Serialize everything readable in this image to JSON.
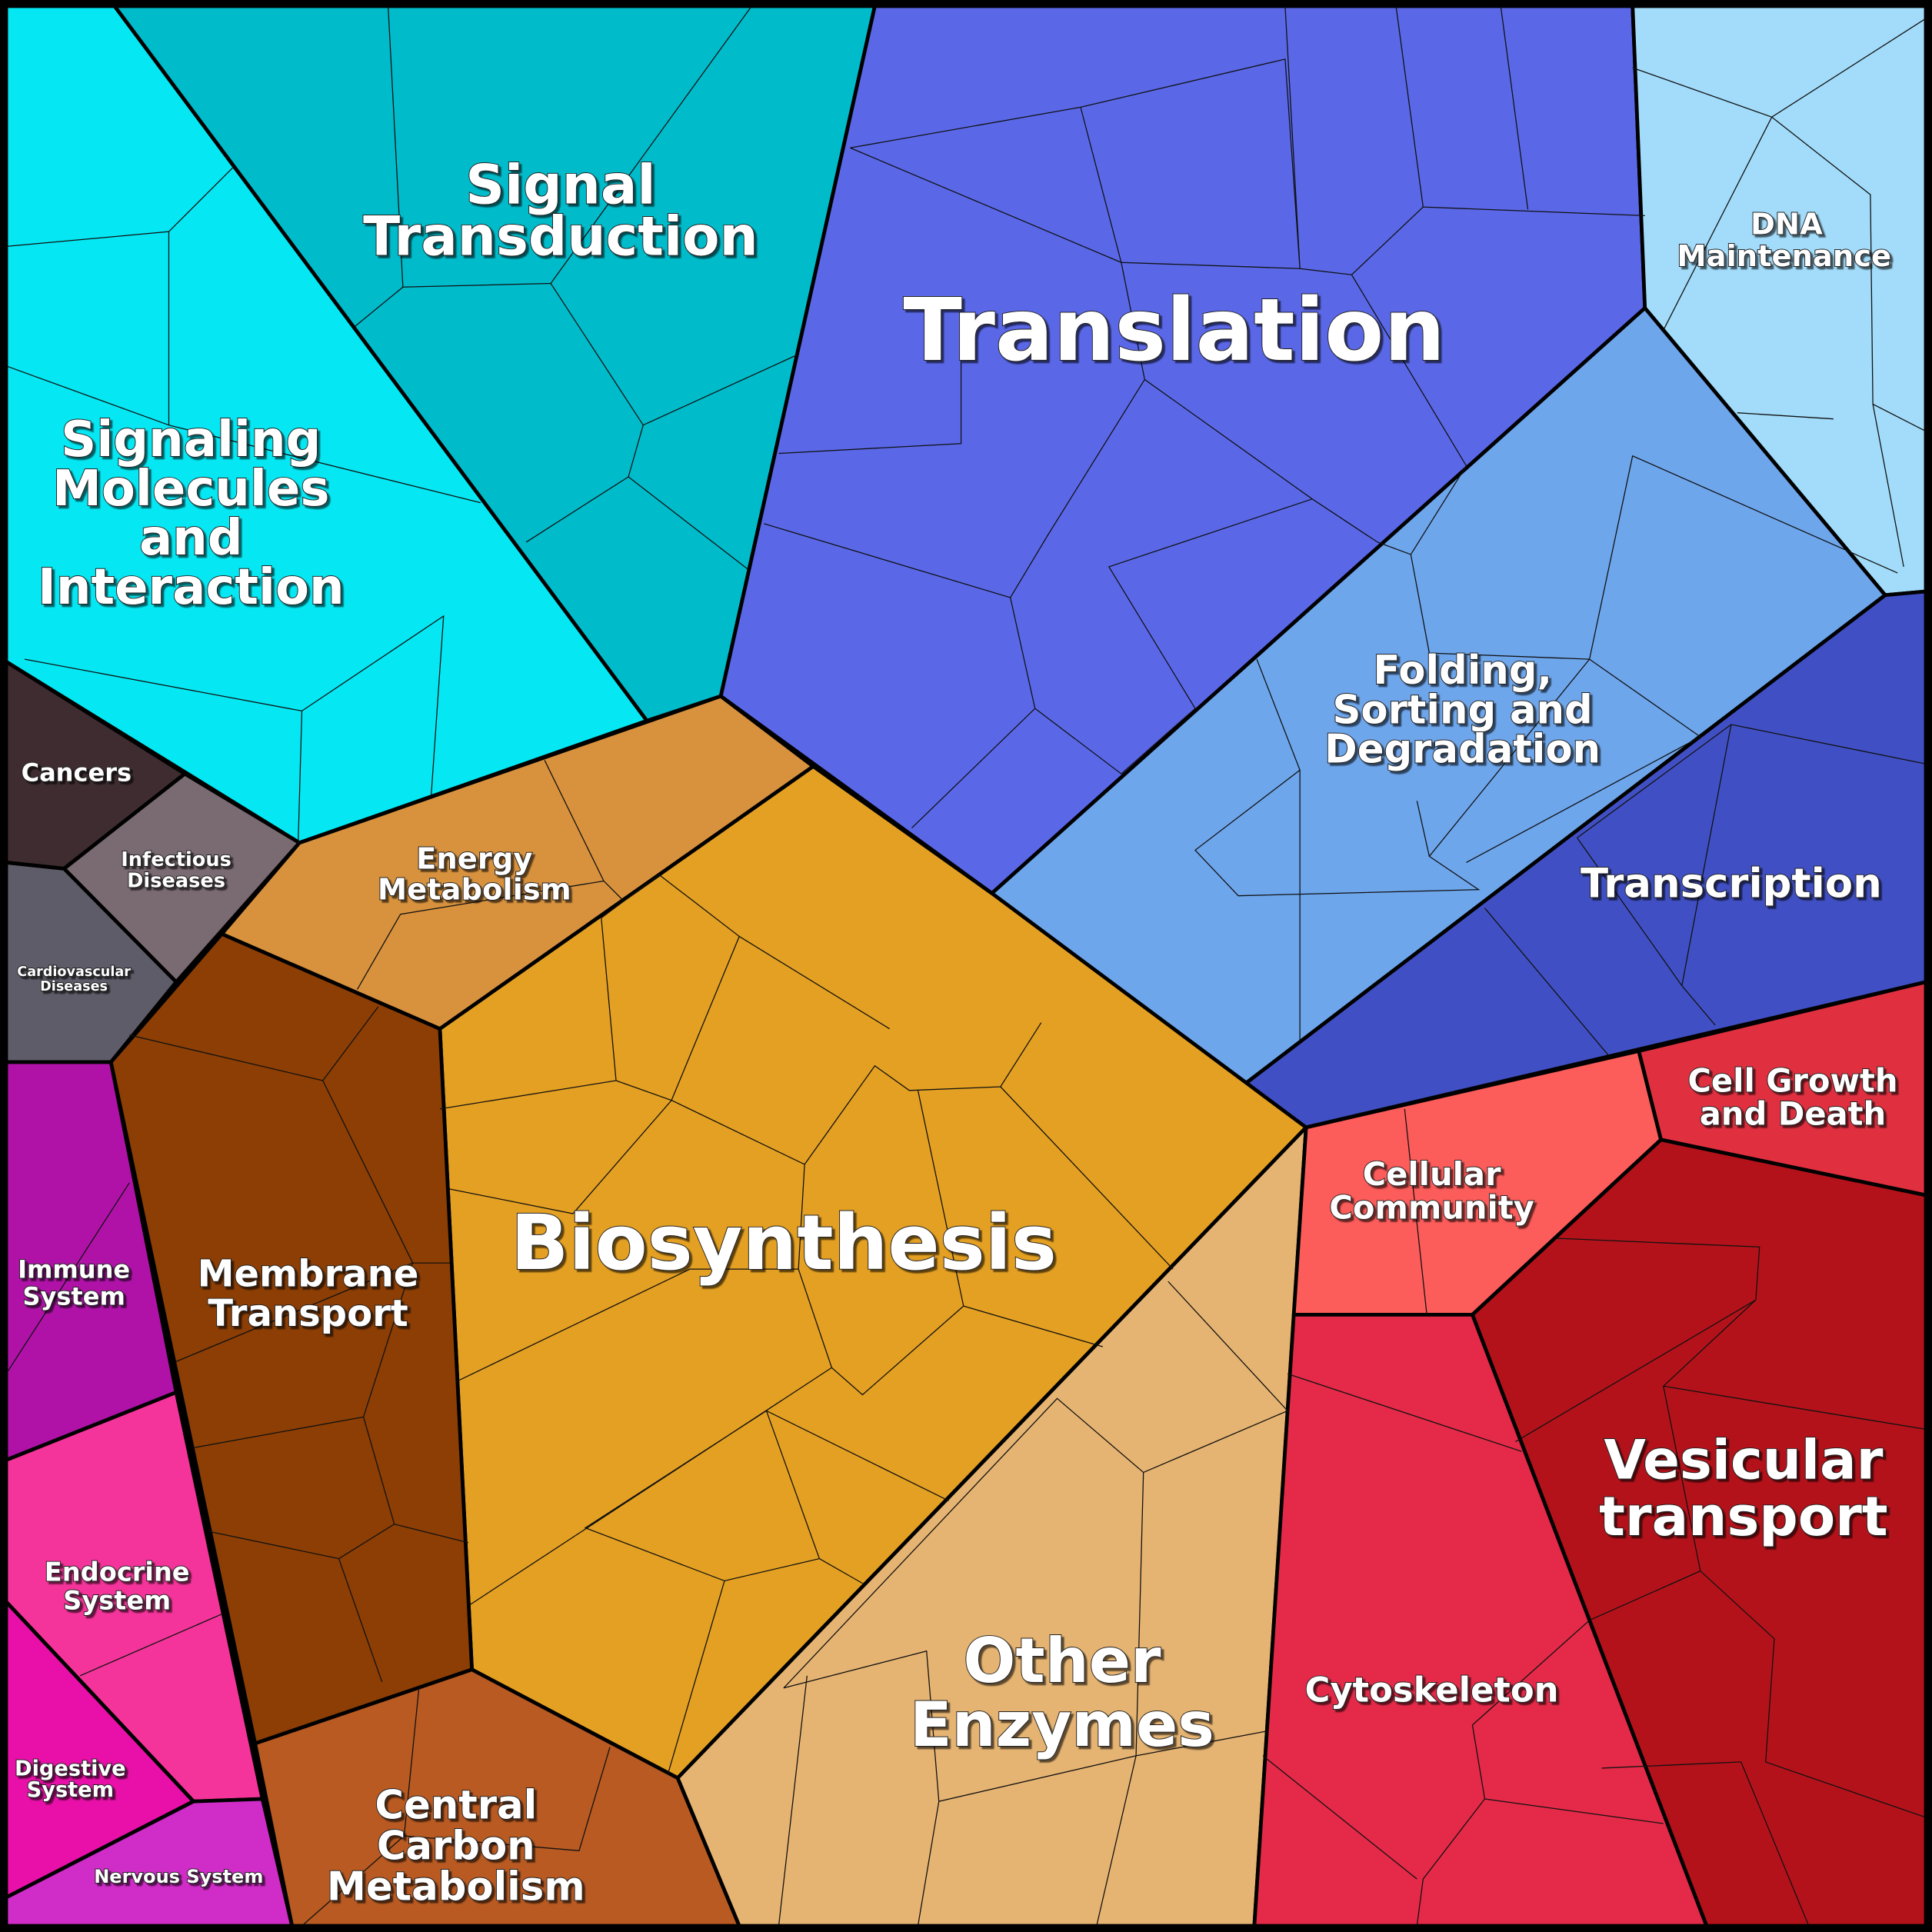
{
  "regions": [
    {
      "label": [
        "Signal",
        "Transduction"
      ]
    },
    {
      "label": [
        "Signaling",
        "Molecules",
        "and",
        "Interaction"
      ]
    },
    {
      "label": [
        "Translation"
      ]
    },
    {
      "label": [
        "DNA",
        "Maintenance"
      ]
    },
    {
      "label": [
        "Folding,",
        "Sorting and",
        "Degradation"
      ]
    },
    {
      "label": [
        "Transcription"
      ]
    },
    {
      "label": [
        "Cancers"
      ]
    },
    {
      "label": [
        "Infectious",
        "Diseases"
      ]
    },
    {
      "label": [
        "Cardiovascular",
        "Diseases"
      ]
    },
    {
      "label": [
        "Energy",
        "Metabolism"
      ]
    },
    {
      "label": [
        "Biosynthesis"
      ]
    },
    {
      "label": [
        "Membrane",
        "Transport"
      ]
    },
    {
      "label": [
        "Immune",
        "System"
      ]
    },
    {
      "label": [
        "Endocrine",
        "System"
      ]
    },
    {
      "label": [
        "Digestive",
        "System"
      ]
    },
    {
      "label": [
        "Nervous System"
      ]
    },
    {
      "label": [
        "Central",
        "Carbon",
        "Metabolism"
      ]
    },
    {
      "label": [
        "Other",
        "Enzymes"
      ]
    },
    {
      "label": [
        "Cell Growth",
        "and Death"
      ]
    },
    {
      "label": [
        "Cellular",
        "Community"
      ]
    },
    {
      "label": [
        "Vesicular",
        "transport"
      ]
    },
    {
      "label": [
        "Cytoskeleton"
      ]
    }
  ]
}
